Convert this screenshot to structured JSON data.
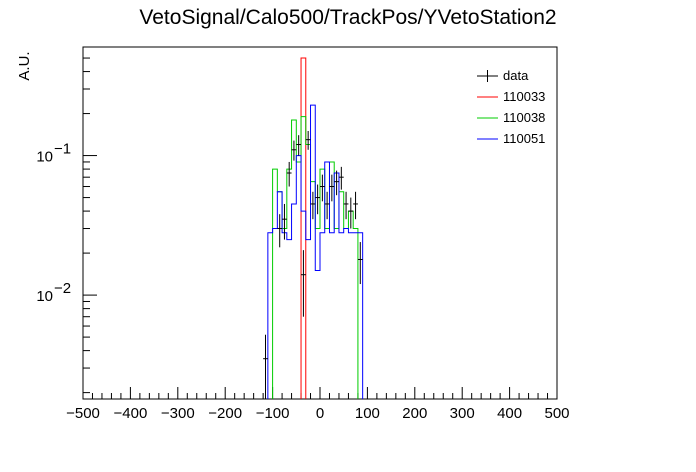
{
  "chart_data": {
    "type": "histogram",
    "title": "VetoSignal/Calo500/TrackPos/YVetoStation2",
    "xlabel": "",
    "ylabel": "A.U.",
    "xlim": [
      -500,
      500
    ],
    "ylim": [
      0.0018,
      0.6
    ],
    "yscale": "log",
    "x_ticks": [
      "−500",
      "−400",
      "−300",
      "−200",
      "−100",
      "0",
      "100",
      "200",
      "300",
      "400",
      "500"
    ],
    "y_ticks": [
      {
        "base": "10",
        "exp": "−1",
        "value": 0.1
      },
      {
        "base": "10",
        "exp": "−2",
        "value": 0.01
      }
    ],
    "bin_width": 10,
    "legend": {
      "position": "top-right",
      "entries": [
        {
          "label": "data",
          "color": "#000000"
        },
        {
          "label": "110033",
          "color": "#ff0000"
        },
        {
          "label": "110038",
          "color": "#00cc00"
        },
        {
          "label": "110051",
          "color": "#0000ff"
        }
      ]
    },
    "series": [
      {
        "name": "data",
        "kind": "points",
        "color": "#000000",
        "x": [
          -115,
          -85,
          -75,
          -65,
          -55,
          -45,
          -35,
          -25,
          -15,
          -5,
          5,
          15,
          25,
          35,
          45,
          55,
          65,
          75,
          85
        ],
        "y": [
          0.0035,
          0.03,
          0.035,
          0.075,
          0.11,
          0.12,
          0.014,
          0.13,
          0.045,
          0.05,
          0.06,
          0.045,
          0.06,
          0.065,
          0.07,
          0.045,
          0.04,
          0.045,
          0.018
        ],
        "yerr": [
          0.0017,
          0.008,
          0.01,
          0.015,
          0.018,
          0.02,
          0.007,
          0.02,
          0.01,
          0.012,
          0.013,
          0.01,
          0.013,
          0.013,
          0.013,
          0.01,
          0.01,
          0.01,
          0.006
        ]
      },
      {
        "name": "110033",
        "kind": "step",
        "color": "#ff0000",
        "edges": [
          -40,
          -30
        ],
        "values": [
          0.5
        ]
      },
      {
        "name": "110038",
        "kind": "step",
        "color": "#00cc00",
        "edges": [
          -100,
          -90,
          -80,
          -70,
          -60,
          -50,
          -40,
          -30,
          -20,
          -10,
          0,
          10,
          20,
          30,
          40,
          50,
          60,
          70,
          80
        ],
        "values": [
          0.08,
          0.055,
          0.03,
          0.08,
          0.18,
          0.09,
          0.19,
          0.12,
          0.065,
          0.03,
          0.08,
          0.03,
          0.09,
          0.03,
          0.055,
          0.03,
          0.04,
          0.03
        ]
      },
      {
        "name": "110051",
        "kind": "step",
        "color": "#0000ff",
        "edges": [
          -110,
          -100,
          -90,
          -80,
          -70,
          -60,
          -50,
          -40,
          -30,
          -20,
          -10,
          0,
          10,
          20,
          30,
          40,
          50,
          60,
          70,
          80,
          90
        ],
        "values": [
          0.028,
          0.03,
          0.055,
          0.028,
          0.025,
          0.045,
          0.1,
          0.04,
          0.025,
          0.23,
          0.015,
          0.028,
          0.09,
          0.028,
          0.075,
          0.028,
          0.03,
          0.028,
          0.028,
          0.028
        ]
      }
    ]
  }
}
